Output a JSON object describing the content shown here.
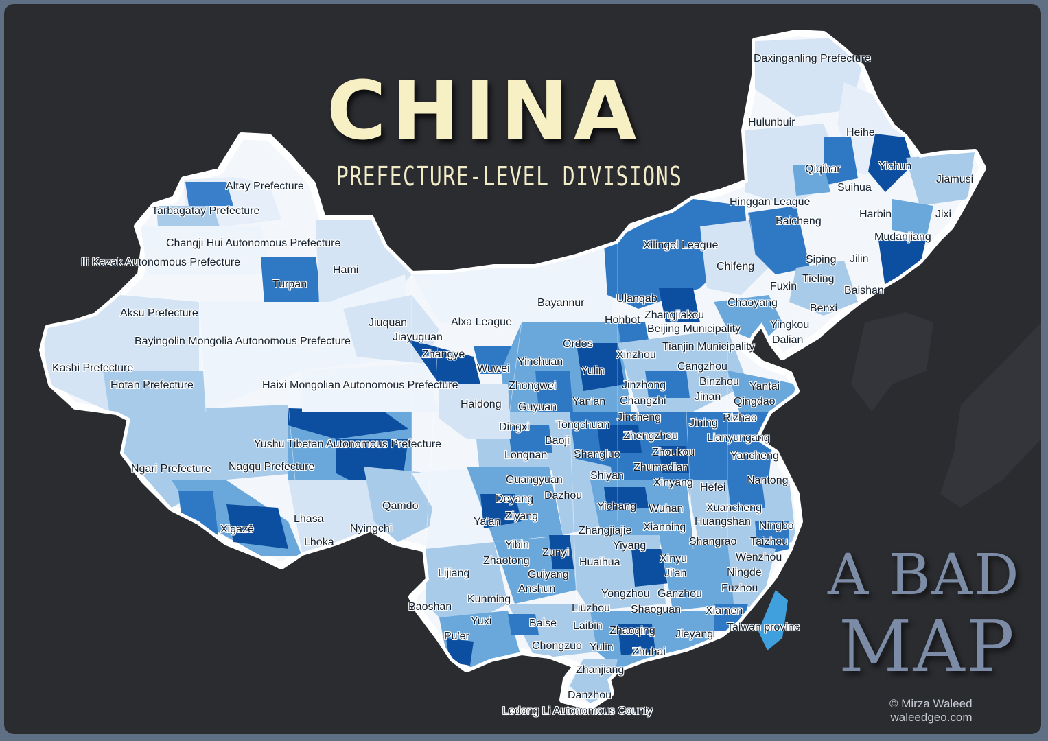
{
  "title": "CHINA",
  "subtitle": "PREFECTURE-LEVEL DIVISIONS",
  "tagline_line1": "A BAD",
  "tagline_line2": "MAP",
  "credit_line1": "© Mirza Waleed",
  "credit_line2": "waleedgeo.com",
  "colors": {
    "background": "#2b2c30",
    "frame": "#7d8ba0",
    "title": "#f6f0c4",
    "tagline": "#7d8ca6",
    "palette": [
      "#eef4fb",
      "#d4e4f4",
      "#a9cbea",
      "#6aa7db",
      "#2f78c4",
      "#0c4ea0"
    ]
  },
  "labels": [
    {
      "text": "Daxinganling Prefecture"
    },
    {
      "text": "Hulunbuir"
    },
    {
      "text": "Heihe"
    },
    {
      "text": "Qiqihar"
    },
    {
      "text": "Yichun"
    },
    {
      "text": "Jiamusi"
    },
    {
      "text": "Suihua"
    },
    {
      "text": "Hinggan League"
    },
    {
      "text": "Harbin"
    },
    {
      "text": "Jixi"
    },
    {
      "text": "Baicheng"
    },
    {
      "text": "Mudanjiang"
    },
    {
      "text": "Altay Prefecture"
    },
    {
      "text": "Tarbagatay Prefecture"
    },
    {
      "text": "Changji Hui Autonomous Prefecture"
    },
    {
      "text": "Ili Kazak Autonomous Prefecture"
    },
    {
      "text": "Hami"
    },
    {
      "text": "Turpan"
    },
    {
      "text": "Xilingol League"
    },
    {
      "text": "Chifeng"
    },
    {
      "text": "Siping"
    },
    {
      "text": "Jilin"
    },
    {
      "text": "Fuxin"
    },
    {
      "text": "Tieling"
    },
    {
      "text": "Baishan"
    },
    {
      "text": "Aksu Prefecture"
    },
    {
      "text": "Bayannur"
    },
    {
      "text": "Ulanqab"
    },
    {
      "text": "Chaoyang"
    },
    {
      "text": "Benxi"
    },
    {
      "text": "Jiuquan"
    },
    {
      "text": "Alxa League"
    },
    {
      "text": "Hohhot"
    },
    {
      "text": "Zhangjiakou"
    },
    {
      "text": "Yingkou"
    },
    {
      "text": "Jiayuguan"
    },
    {
      "text": "Beijing Municipality"
    },
    {
      "text": "Bayingolin Mongolia Autonomous Prefecture"
    },
    {
      "text": "Ordos"
    },
    {
      "text": "Dalian"
    },
    {
      "text": "Zhangye"
    },
    {
      "text": "Xinzhou"
    },
    {
      "text": "Tianjin Municipality"
    },
    {
      "text": "Kashi Prefecture"
    },
    {
      "text": "Yinchuan"
    },
    {
      "text": "Wuwei"
    },
    {
      "text": "Cangzhou"
    },
    {
      "text": "Yulin"
    },
    {
      "text": "Zhongwei"
    },
    {
      "text": "Jinzhong"
    },
    {
      "text": "Binzhou"
    },
    {
      "text": "Hotan Prefecture"
    },
    {
      "text": "Haixi Mongolian Autonomous Prefecture"
    },
    {
      "text": "Yantai"
    },
    {
      "text": "Jinan"
    },
    {
      "text": "Yan'an"
    },
    {
      "text": "Changzhi"
    },
    {
      "text": "Qingdao"
    },
    {
      "text": "Haidong"
    },
    {
      "text": "Guyuan"
    },
    {
      "text": "Rizhao"
    },
    {
      "text": "Jincheng"
    },
    {
      "text": "Dingxi"
    },
    {
      "text": "Jining"
    },
    {
      "text": "Tongchuan"
    },
    {
      "text": "Baoji"
    },
    {
      "text": "Zhengzhou"
    },
    {
      "text": "Lianyungang"
    },
    {
      "text": "Yushu Tibetan Autonomous Prefecture"
    },
    {
      "text": "Longnan"
    },
    {
      "text": "Shangluo"
    },
    {
      "text": "Zhoukou"
    },
    {
      "text": "Yancheng"
    },
    {
      "text": "Ngari Prefecture"
    },
    {
      "text": "Nagqu Prefecture"
    },
    {
      "text": "Zhumadian"
    },
    {
      "text": "Shiyan"
    },
    {
      "text": "Guangyuan"
    },
    {
      "text": "Nantong"
    },
    {
      "text": "Xinyang"
    },
    {
      "text": "Hefei"
    },
    {
      "text": "Deyang"
    },
    {
      "text": "Dazhou"
    },
    {
      "text": "Qamdo"
    },
    {
      "text": "Yichang"
    },
    {
      "text": "Wuhan"
    },
    {
      "text": "Xuancheng"
    },
    {
      "text": "Ziyang"
    },
    {
      "text": "Ya'an"
    },
    {
      "text": "Lhasa"
    },
    {
      "text": "Huangshan"
    },
    {
      "text": "Ningbo"
    },
    {
      "text": "Xigazê"
    },
    {
      "text": "Nyingchi"
    },
    {
      "text": "Zhangjiajie"
    },
    {
      "text": "Xianning"
    },
    {
      "text": "Lhoka"
    },
    {
      "text": "Yibin"
    },
    {
      "text": "Yiyang"
    },
    {
      "text": "Shangrao"
    },
    {
      "text": "Taizhou"
    },
    {
      "text": "Zunyi"
    },
    {
      "text": "Wenzhou"
    },
    {
      "text": "Zhaotong"
    },
    {
      "text": "Huaihua"
    },
    {
      "text": "Xinyu"
    },
    {
      "text": "Lijiang"
    },
    {
      "text": "Guiyang"
    },
    {
      "text": "Ji'an"
    },
    {
      "text": "Ningde"
    },
    {
      "text": "Anshun"
    },
    {
      "text": "Fuzhou"
    },
    {
      "text": "Yongzhou"
    },
    {
      "text": "Ganzhou"
    },
    {
      "text": "Kunming"
    },
    {
      "text": "Baoshan"
    },
    {
      "text": "Liuzhou"
    },
    {
      "text": "Shaoguan"
    },
    {
      "text": "Xiamen"
    },
    {
      "text": "Yuxi"
    },
    {
      "text": "Baise"
    },
    {
      "text": "Laibin"
    },
    {
      "text": "Taiwan provinc"
    },
    {
      "text": "Zhaoqing"
    },
    {
      "text": "Jieyang"
    },
    {
      "text": "Pu'er"
    },
    {
      "text": "Chongzuo"
    },
    {
      "text": "Yulin"
    },
    {
      "text": "Zhuhai"
    },
    {
      "text": "Zhanjiang"
    },
    {
      "text": "Danzhou"
    },
    {
      "text": "Ledong Li Autonomous County"
    }
  ]
}
